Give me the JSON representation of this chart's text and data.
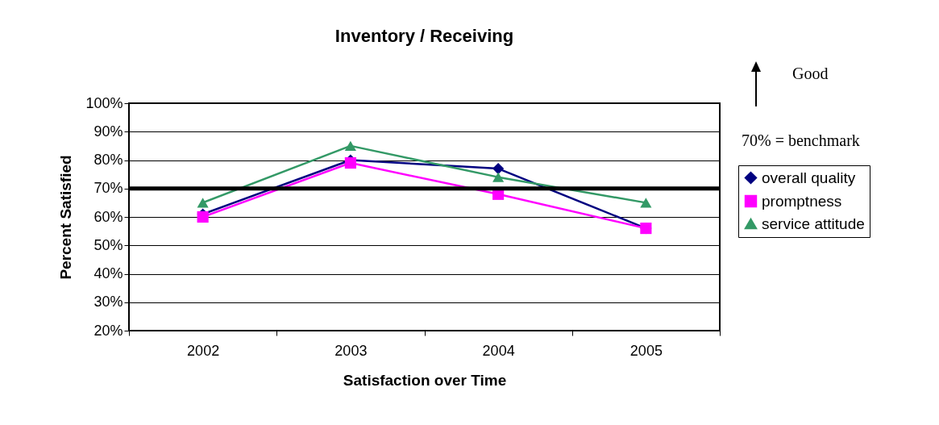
{
  "chart_data": {
    "type": "line",
    "title": "Inventory / Receiving",
    "xlabel": "Satisfaction over Time",
    "ylabel": "Percent Satisfied",
    "categories": [
      "2002",
      "2003",
      "2004",
      "2005"
    ],
    "series": [
      {
        "name": "overall quality",
        "color": "#000080",
        "marker": "diamond",
        "values": [
          61,
          80,
          77,
          56
        ]
      },
      {
        "name": "promptness",
        "color": "#ff00ff",
        "marker": "square",
        "values": [
          60,
          79,
          68,
          56
        ]
      },
      {
        "name": "service attitude",
        "color": "#339966",
        "marker": "triangle",
        "values": [
          65,
          85,
          74,
          65
        ]
      }
    ],
    "ylim": [
      20,
      100
    ],
    "yticks": [
      {
        "value": 20,
        "label": "20%"
      },
      {
        "value": 30,
        "label": "30%"
      },
      {
        "value": 40,
        "label": "40%"
      },
      {
        "value": 50,
        "label": "50%"
      },
      {
        "value": 60,
        "label": "60%"
      },
      {
        "value": 70,
        "label": "70%"
      },
      {
        "value": 80,
        "label": "80%"
      },
      {
        "value": 90,
        "label": "90%"
      },
      {
        "value": 100,
        "label": "100%"
      }
    ],
    "ref_lines": [
      {
        "axis": "y",
        "value": 70,
        "color": "#000000"
      }
    ],
    "annotations": [
      "Good",
      "70% = benchmark"
    ],
    "grid": "y",
    "legend": "right"
  }
}
